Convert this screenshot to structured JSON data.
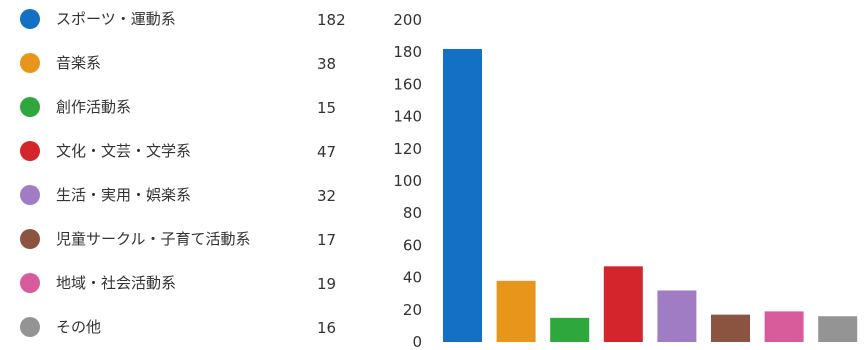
{
  "chart_data": {
    "type": "bar",
    "categories": [
      "スポーツ・運動系",
      "音楽系",
      "創作活動系",
      "文化・文芸・文学系",
      "生活・実用・娯楽系",
      "児童サークル・子育て活動系",
      "地域・社会活動系",
      "その他"
    ],
    "values": [
      182,
      38,
      15,
      47,
      32,
      17,
      19,
      16
    ],
    "colors": [
      "#1470c4",
      "#e8951c",
      "#2ea83c",
      "#d4242c",
      "#a07cc4",
      "#8a5440",
      "#d85c9c",
      "#949494"
    ],
    "ylim": [
      0,
      200
    ],
    "yticks": [
      0,
      20,
      40,
      60,
      80,
      100,
      120,
      140,
      160,
      180,
      200
    ],
    "legend_position": "left",
    "grid": false
  }
}
